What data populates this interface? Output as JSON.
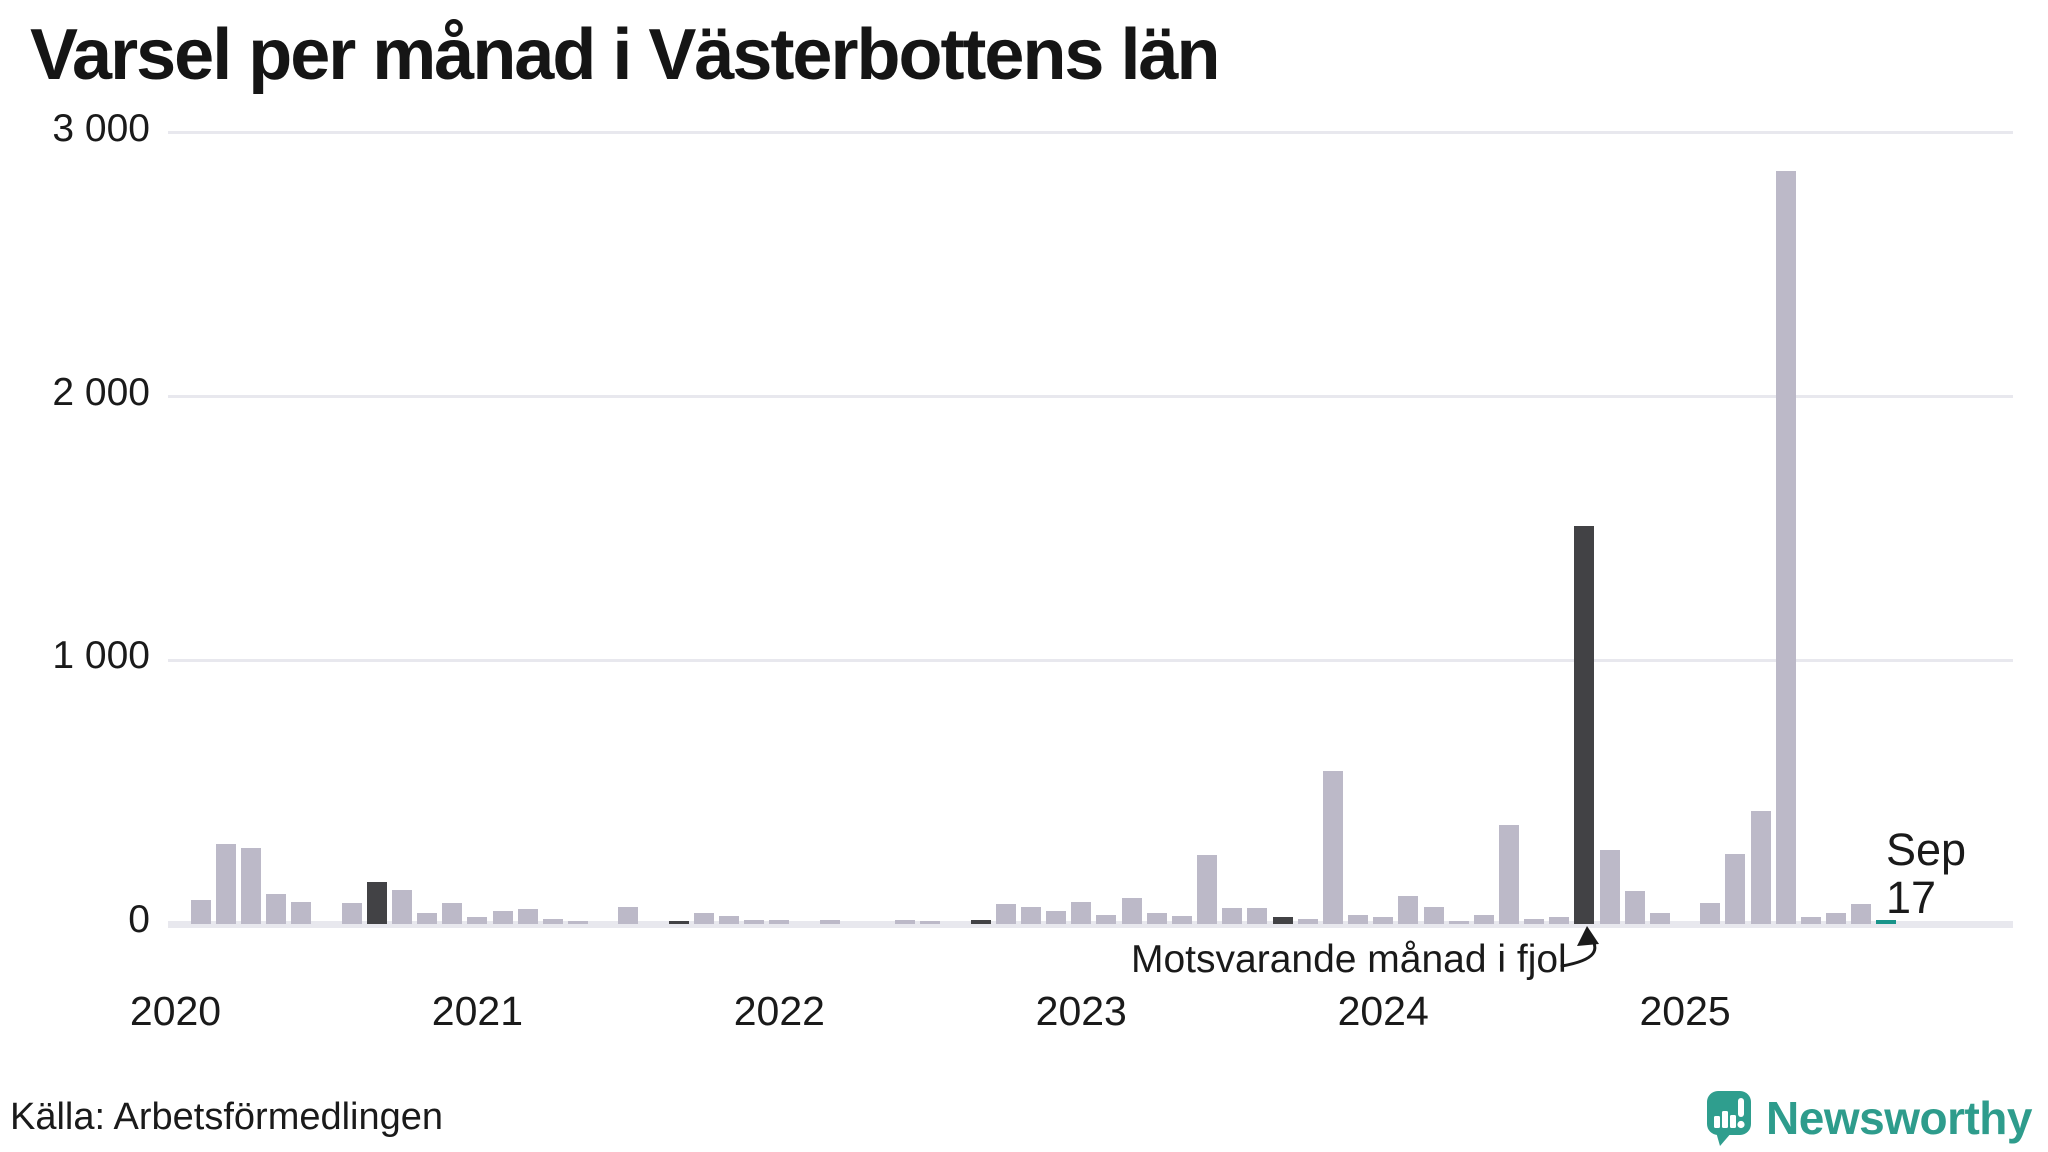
{
  "title": "Varsel per månad i Västerbottens län",
  "source": "Källa: Arbetsförmedlingen",
  "brand": {
    "name": "Newsworthy"
  },
  "annotation": {
    "text": "Motsvarande månad i fjol",
    "points_to": "2024-09"
  },
  "current_point_label": {
    "line1": "Sep",
    "line2": "17"
  },
  "colors": {
    "bar_default": "#bcb9c8",
    "bar_same_month_previous_years": "#424245",
    "bar_current_month": "#19948a",
    "gridline": "#e8e8ee",
    "text": "#1a1a1a",
    "brand_teal": "#2e9c8c"
  },
  "chart_data": {
    "type": "bar",
    "title": "Varsel per månad i Västerbottens län",
    "xlabel": "",
    "ylabel": "",
    "ylim": [
      0,
      3000
    ],
    "grid": true,
    "yticks": [
      {
        "value": 0,
        "label": "0"
      },
      {
        "value": 1000,
        "label": "1 000"
      },
      {
        "value": 2000,
        "label": "2 000"
      },
      {
        "value": 3000,
        "label": "3 000"
      }
    ],
    "xticks": [
      "2020",
      "2021",
      "2022",
      "2023",
      "2024",
      "2025"
    ],
    "months": [
      {
        "month": "2020-01",
        "value": 0,
        "role": "normal"
      },
      {
        "month": "2020-02",
        "value": 90,
        "role": "normal"
      },
      {
        "month": "2020-03",
        "value": 305,
        "role": "normal"
      },
      {
        "month": "2020-04",
        "value": 290,
        "role": "normal"
      },
      {
        "month": "2020-05",
        "value": 115,
        "role": "normal"
      },
      {
        "month": "2020-06",
        "value": 85,
        "role": "normal"
      },
      {
        "month": "2020-07",
        "value": 0,
        "role": "normal"
      },
      {
        "month": "2020-08",
        "value": 80,
        "role": "normal"
      },
      {
        "month": "2020-09",
        "value": 160,
        "role": "dark"
      },
      {
        "month": "2020-10",
        "value": 130,
        "role": "normal"
      },
      {
        "month": "2020-11",
        "value": 40,
        "role": "normal"
      },
      {
        "month": "2020-12",
        "value": 80,
        "role": "normal"
      },
      {
        "month": "2021-01",
        "value": 25,
        "role": "normal"
      },
      {
        "month": "2021-02",
        "value": 50,
        "role": "normal"
      },
      {
        "month": "2021-03",
        "value": 55,
        "role": "normal"
      },
      {
        "month": "2021-04",
        "value": 20,
        "role": "normal"
      },
      {
        "month": "2021-05",
        "value": 10,
        "role": "normal"
      },
      {
        "month": "2021-06",
        "value": 0,
        "role": "normal"
      },
      {
        "month": "2021-07",
        "value": 65,
        "role": "normal"
      },
      {
        "month": "2021-08",
        "value": 0,
        "role": "normal"
      },
      {
        "month": "2021-09",
        "value": 5,
        "role": "dark"
      },
      {
        "month": "2021-10",
        "value": 40,
        "role": "normal"
      },
      {
        "month": "2021-11",
        "value": 30,
        "role": "normal"
      },
      {
        "month": "2021-12",
        "value": 15,
        "role": "normal"
      },
      {
        "month": "2022-01",
        "value": 15,
        "role": "normal"
      },
      {
        "month": "2022-02",
        "value": 0,
        "role": "normal"
      },
      {
        "month": "2022-03",
        "value": 15,
        "role": "normal"
      },
      {
        "month": "2022-04",
        "value": 0,
        "role": "normal"
      },
      {
        "month": "2022-05",
        "value": 0,
        "role": "normal"
      },
      {
        "month": "2022-06",
        "value": 15,
        "role": "normal"
      },
      {
        "month": "2022-07",
        "value": 10,
        "role": "normal"
      },
      {
        "month": "2022-08",
        "value": 0,
        "role": "normal"
      },
      {
        "month": "2022-09",
        "value": 15,
        "role": "dark"
      },
      {
        "month": "2022-10",
        "value": 75,
        "role": "normal"
      },
      {
        "month": "2022-11",
        "value": 65,
        "role": "normal"
      },
      {
        "month": "2022-12",
        "value": 50,
        "role": "normal"
      },
      {
        "month": "2023-01",
        "value": 85,
        "role": "normal"
      },
      {
        "month": "2023-02",
        "value": 35,
        "role": "normal"
      },
      {
        "month": "2023-03",
        "value": 100,
        "role": "normal"
      },
      {
        "month": "2023-04",
        "value": 40,
        "role": "normal"
      },
      {
        "month": "2023-05",
        "value": 30,
        "role": "normal"
      },
      {
        "month": "2023-06",
        "value": 260,
        "role": "normal"
      },
      {
        "month": "2023-07",
        "value": 60,
        "role": "normal"
      },
      {
        "month": "2023-08",
        "value": 60,
        "role": "normal"
      },
      {
        "month": "2023-09",
        "value": 25,
        "role": "dark"
      },
      {
        "month": "2023-10",
        "value": 20,
        "role": "normal"
      },
      {
        "month": "2023-11",
        "value": 580,
        "role": "normal"
      },
      {
        "month": "2023-12",
        "value": 35,
        "role": "normal"
      },
      {
        "month": "2024-01",
        "value": 25,
        "role": "normal"
      },
      {
        "month": "2024-02",
        "value": 105,
        "role": "normal"
      },
      {
        "month": "2024-03",
        "value": 65,
        "role": "normal"
      },
      {
        "month": "2024-04",
        "value": 5,
        "role": "normal"
      },
      {
        "month": "2024-05",
        "value": 35,
        "role": "normal"
      },
      {
        "month": "2024-06",
        "value": 375,
        "role": "normal"
      },
      {
        "month": "2024-07",
        "value": 20,
        "role": "normal"
      },
      {
        "month": "2024-08",
        "value": 25,
        "role": "normal"
      },
      {
        "month": "2024-09",
        "value": 1510,
        "role": "dark"
      },
      {
        "month": "2024-10",
        "value": 280,
        "role": "normal"
      },
      {
        "month": "2024-11",
        "value": 125,
        "role": "normal"
      },
      {
        "month": "2024-12",
        "value": 40,
        "role": "normal"
      },
      {
        "month": "2025-01",
        "value": 0,
        "role": "normal"
      },
      {
        "month": "2025-02",
        "value": 80,
        "role": "normal"
      },
      {
        "month": "2025-03",
        "value": 265,
        "role": "normal"
      },
      {
        "month": "2025-04",
        "value": 430,
        "role": "normal"
      },
      {
        "month": "2025-05",
        "value": 2855,
        "role": "normal"
      },
      {
        "month": "2025-06",
        "value": 25,
        "role": "normal"
      },
      {
        "month": "2025-07",
        "value": 40,
        "role": "normal"
      },
      {
        "month": "2025-08",
        "value": 75,
        "role": "normal"
      },
      {
        "month": "2025-09",
        "value": 17,
        "role": "current"
      }
    ]
  }
}
